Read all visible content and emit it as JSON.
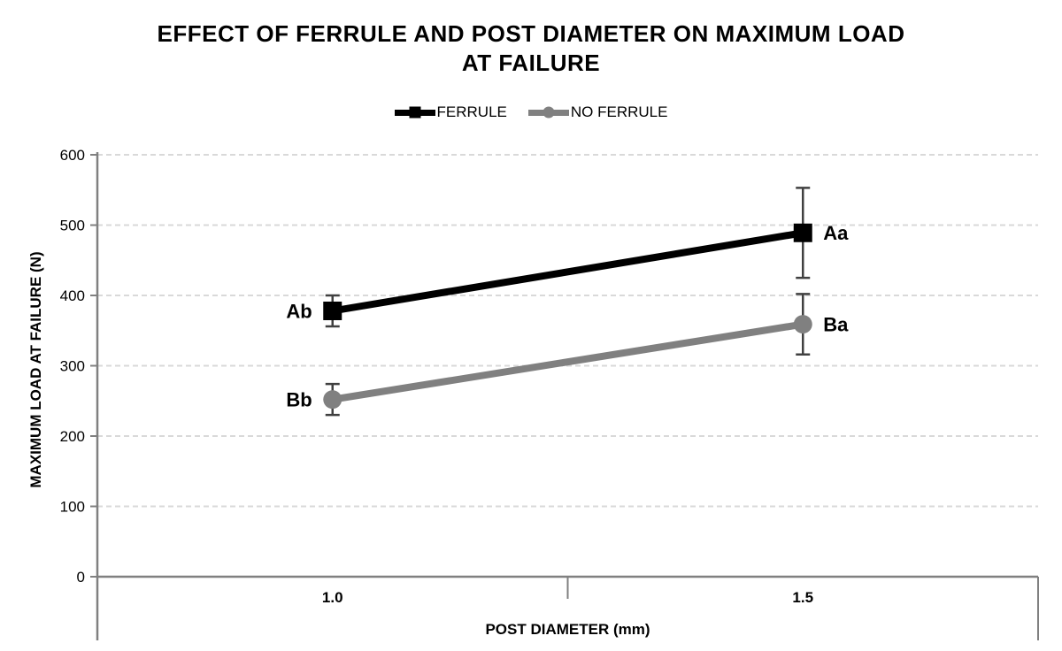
{
  "title": {
    "lines": [
      "EFFECT OF FERRULE AND POST DIAMETER ON MAXIMUM LOAD",
      "AT FAILURE"
    ]
  },
  "colors": {
    "background": "#FFFFFF",
    "axis": "#808080",
    "gridline": "#D9D9D9",
    "error_bar": "#404040",
    "text": "#000000"
  },
  "chart_data": {
    "type": "line",
    "title": "EFFECT OF FERRULE AND POST DIAMETER ON MAXIMUM LOAD AT FAILURE",
    "xlabel": "POST DIAMETER (mm)",
    "ylabel": "MAXIMUM LOAD AT FAILURE (N)",
    "categories": [
      "1.0",
      "1.5"
    ],
    "ylim": [
      0,
      600
    ],
    "yticks": [
      0,
      100,
      200,
      300,
      400,
      500,
      600
    ],
    "grid": "horizontal-dashed",
    "legend_position": "top",
    "series": [
      {
        "name": "FERRULE",
        "color": "#000000",
        "marker": "square",
        "values": [
          378,
          489
        ],
        "error": [
          22,
          64
        ],
        "point_labels": [
          "Ab",
          "Aa"
        ],
        "label_side": [
          "left",
          "right"
        ]
      },
      {
        "name": "NO FERRULE",
        "color": "#808080",
        "marker": "circle",
        "values": [
          252,
          359
        ],
        "error": [
          22,
          43
        ],
        "point_labels": [
          "Bb",
          "Ba"
        ],
        "label_side": [
          "left",
          "right"
        ]
      }
    ]
  }
}
